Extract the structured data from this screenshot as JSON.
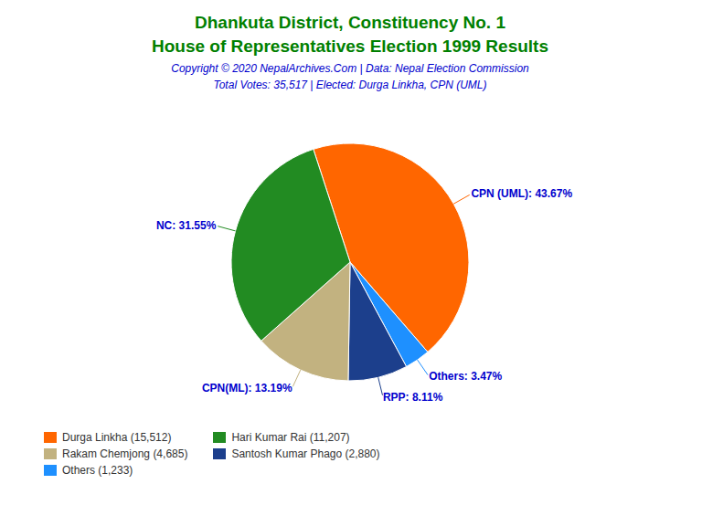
{
  "chart_data": {
    "type": "pie",
    "title": [
      "Dhankuta District, Constituency No. 1",
      "House of Representatives Election 1999 Results"
    ],
    "title_color": "#008000",
    "annotations": [
      "Copyright © 2020 NepalArchives.Com | Data: Nepal Election Commission"
    ],
    "annotation_color": "#0000CD",
    "subtitle": "Total Votes: 35,517 | Elected: Durga Linkha, CPN (UML)",
    "subtitle_color": "#0000CD",
    "values": [
      43.67,
      3.47,
      8.11,
      13.19,
      31.55
    ],
    "value_labels": [
      "CPN (UML): 43.67%",
      "Others: 3.47%",
      "RPP: 8.11%",
      "CPN(ML): 13.19%",
      "NC: 31.55%"
    ],
    "colors": [
      "#FF6600",
      "#1E90FF",
      "#1C3F8C",
      "#C2B280",
      "#228B22"
    ],
    "label_color": "#0000CD",
    "data_labels": true,
    "legend": "lower left",
    "legend_entries": [
      {
        "label": "Durga Linkha (15,512)",
        "color": "#FF6600"
      },
      {
        "label": "Hari Kumar Rai (11,207)",
        "color": "#228B22"
      },
      {
        "label": "Rakam Chemjong (4,685)",
        "color": "#C2B280"
      },
      {
        "label": "Santosh Kumar Phago (2,880)",
        "color": "#1C3F8C"
      },
      {
        "label": "Others (1,233)",
        "color": "#1E90FF"
      }
    ]
  }
}
